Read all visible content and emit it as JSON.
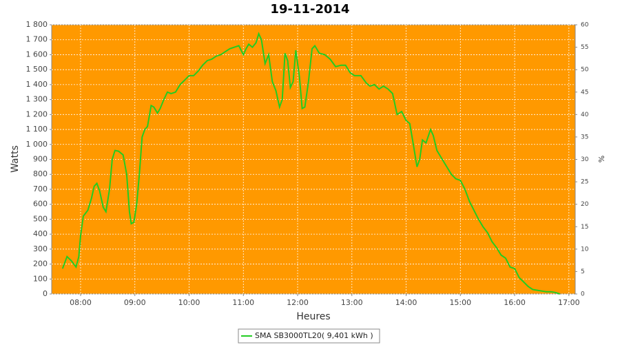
{
  "chart_data": {
    "type": "line",
    "title": "19-11-2014",
    "x_label": "Heures",
    "y_label": "Watts",
    "y2_label": "%",
    "x": [
      "07:40",
      "07:45",
      "07:50",
      "07:55",
      "07:58",
      "08:00",
      "08:03",
      "08:08",
      "08:12",
      "08:15",
      "08:18",
      "08:21",
      "08:25",
      "08:28",
      "08:32",
      "08:35",
      "08:38",
      "08:42",
      "08:47",
      "08:51",
      "08:54",
      "08:56",
      "08:59",
      "09:02",
      "09:05",
      "09:08",
      "09:11",
      "09:14",
      "09:18",
      "09:21",
      "09:25",
      "09:28",
      "09:32",
      "09:36",
      "09:40",
      "09:45",
      "09:50",
      "09:55",
      "10:00",
      "10:05",
      "10:10",
      "10:15",
      "10:20",
      "10:25",
      "10:30",
      "10:35",
      "10:40",
      "10:45",
      "10:50",
      "10:55",
      "11:00",
      "11:03",
      "11:06",
      "11:10",
      "11:14",
      "11:17",
      "11:20",
      "11:24",
      "11:28",
      "11:32",
      "11:36",
      "11:40",
      "11:43",
      "11:46",
      "11:49",
      "11:52",
      "11:55",
      "11:58",
      "12:02",
      "12:05",
      "12:08",
      "12:12",
      "12:16",
      "12:19",
      "12:24",
      "12:30",
      "12:36",
      "12:42",
      "12:48",
      "12:53",
      "12:58",
      "13:03",
      "13:10",
      "13:16",
      "13:20",
      "13:25",
      "13:30",
      "13:35",
      "13:40",
      "13:45",
      "13:50",
      "13:55",
      "14:00",
      "14:04",
      "14:08",
      "14:12",
      "14:15",
      "14:18",
      "14:22",
      "14:27",
      "14:30",
      "14:34",
      "14:40",
      "14:45",
      "14:50",
      "14:55",
      "15:00",
      "15:05",
      "15:10",
      "15:15",
      "15:20",
      "15:25",
      "15:30",
      "15:35",
      "15:40",
      "15:45",
      "15:50",
      "15:55",
      "16:00",
      "16:05",
      "16:10",
      "16:15",
      "16:20",
      "16:25",
      "16:30",
      "16:35",
      "16:40",
      "16:45",
      "16:50"
    ],
    "series": [
      {
        "name": "SMA SB3000TL20( 9,401 kWh )",
        "color": "#22cc22",
        "values": [
          170,
          250,
          220,
          180,
          250,
          390,
          520,
          560,
          640,
          720,
          740,
          690,
          580,
          550,
          700,
          900,
          960,
          955,
          930,
          800,
          550,
          470,
          480,
          600,
          800,
          1050,
          1100,
          1120,
          1260,
          1250,
          1210,
          1240,
          1300,
          1350,
          1340,
          1350,
          1400,
          1430,
          1460,
          1460,
          1490,
          1530,
          1560,
          1570,
          1590,
          1600,
          1620,
          1640,
          1650,
          1660,
          1600,
          1640,
          1670,
          1650,
          1680,
          1740,
          1700,
          1540,
          1600,
          1420,
          1360,
          1250,
          1300,
          1610,
          1560,
          1380,
          1420,
          1630,
          1450,
          1240,
          1250,
          1420,
          1640,
          1660,
          1610,
          1600,
          1570,
          1520,
          1530,
          1530,
          1480,
          1460,
          1460,
          1410,
          1390,
          1400,
          1370,
          1390,
          1370,
          1340,
          1200,
          1220,
          1160,
          1140,
          1000,
          850,
          900,
          1030,
          1010,
          1100,
          1060,
          960,
          900,
          850,
          800,
          770,
          760,
          700,
          620,
          560,
          500,
          450,
          410,
          350,
          310,
          260,
          240,
          180,
          170,
          110,
          80,
          50,
          30,
          25,
          20,
          15,
          15,
          10,
          0
        ]
      }
    ],
    "xlim": [
      "07:28",
      "17:07"
    ],
    "xticks": [
      "08:00",
      "09:00",
      "10:00",
      "11:00",
      "12:00",
      "13:00",
      "14:00",
      "15:00",
      "16:00",
      "17:00"
    ],
    "ylim": [
      0,
      1800
    ],
    "yticks": [
      0,
      100,
      200,
      300,
      400,
      500,
      600,
      700,
      800,
      900,
      {
        "value": 1000,
        "label": "1 000"
      },
      {
        "value": 1100,
        "label": "1 100"
      },
      {
        "value": 1200,
        "label": "1 200"
      },
      {
        "value": 1300,
        "label": "1 300"
      },
      {
        "value": 1400,
        "label": "1 400"
      },
      {
        "value": 1500,
        "label": "1 500"
      },
      {
        "value": 1600,
        "label": "1 600"
      },
      {
        "value": 1700,
        "label": "1 700"
      },
      {
        "value": 1800,
        "label": "1 800"
      }
    ],
    "y2lim": [
      0,
      60
    ],
    "y2ticks": [
      0,
      5,
      10,
      15,
      20,
      25,
      30,
      35,
      40,
      45,
      50,
      55,
      60
    ],
    "grid": true,
    "background": "#ff9900"
  }
}
